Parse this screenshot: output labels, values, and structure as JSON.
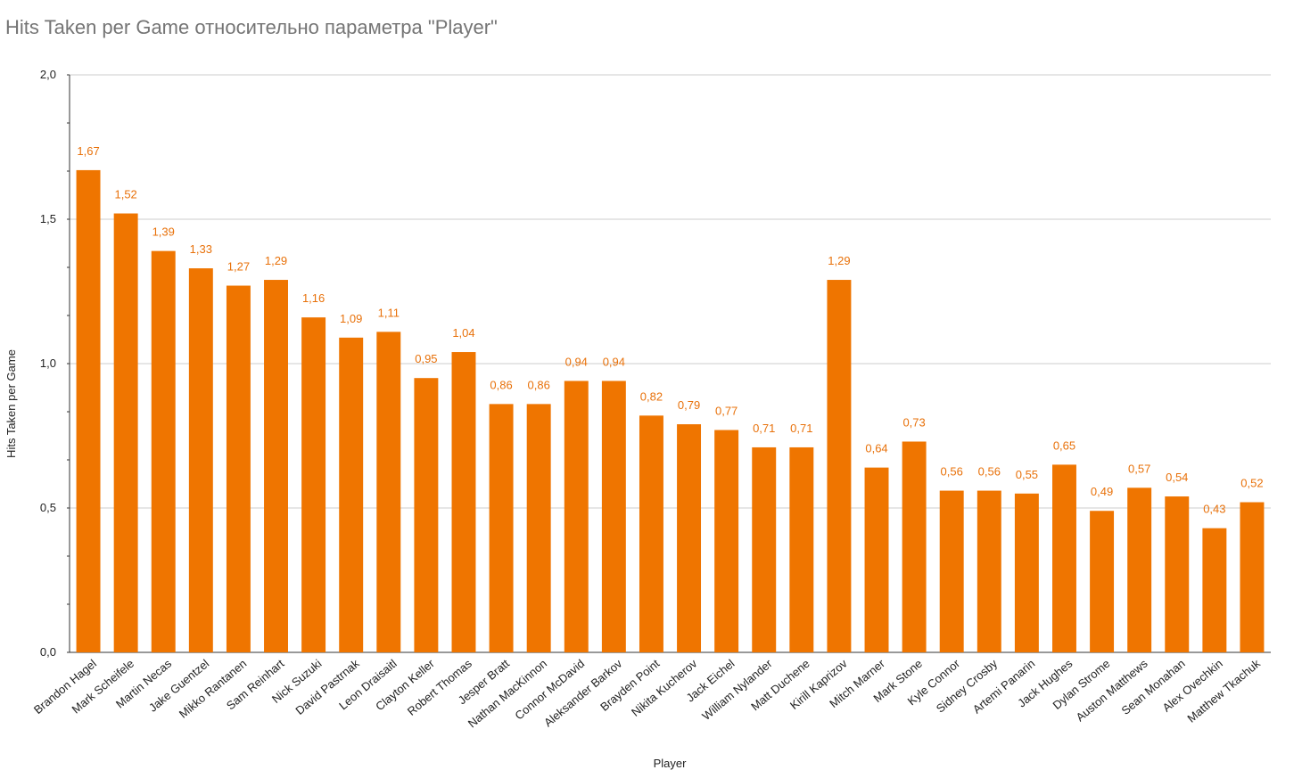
{
  "chart_data": {
    "type": "bar",
    "title": "Hits Taken per Game относительно параметра \"Player\"",
    "xlabel": "Player",
    "ylabel": "Hits Taken per Game",
    "ylim": [
      0,
      2
    ],
    "yticks": [
      "0,0",
      "0,5",
      "1,0",
      "1,5",
      "2,0"
    ],
    "grid": true,
    "legend": "none",
    "bar_color": "#ef7500",
    "label_color": "#e8710a",
    "categories": [
      "Brandon Hagel",
      "Mark Scheifele",
      "Martin Necas",
      "Jake Guentzel",
      "Mikko Rantanen",
      "Sam Reinhart",
      "Nick Suzuki",
      "David Pastrnak",
      "Leon Draisaitl",
      "Clayton Keller",
      "Robert Thomas",
      "Jesper Bratt",
      "Nathan MacKinnon",
      "Connor McDavid",
      "Aleksander Barkov",
      "Brayden Point",
      "Nikita Kucherov",
      "Jack Eichel",
      "William Nylander",
      "Matt Duchene",
      "Kirill Kaprizov",
      "Mitch Marner",
      "Mark Stone",
      "Kyle Connor",
      "Sidney Crosby",
      "Artemi Panarin",
      "Jack Hughes",
      "Dylan Strome",
      "Auston Matthews",
      "Sean Monahan",
      "Alex Ovechkin",
      "Matthew Tkachuk"
    ],
    "values": [
      1.67,
      1.52,
      1.39,
      1.33,
      1.27,
      1.29,
      1.16,
      1.09,
      1.11,
      0.95,
      1.04,
      0.86,
      0.86,
      0.94,
      0.94,
      0.82,
      0.79,
      0.77,
      0.71,
      0.71,
      1.29,
      0.64,
      0.73,
      0.56,
      0.56,
      0.55,
      0.65,
      0.49,
      0.57,
      0.54,
      0.43,
      0.52
    ],
    "value_labels": [
      "1,67",
      "1,52",
      "1,39",
      "1,33",
      "1,27",
      "1,29",
      "1,16",
      "1,09",
      "1,11",
      "0,95",
      "1,04",
      "0,86",
      "0,86",
      "0,94",
      "0,94",
      "0,82",
      "0,79",
      "0,77",
      "0,71",
      "0,71",
      "1,29",
      "0,64",
      "0,73",
      "0,56",
      "0,56",
      "0,55",
      "0,65",
      "0,49",
      "0,57",
      "0,54",
      "0,43",
      "0,52"
    ]
  }
}
